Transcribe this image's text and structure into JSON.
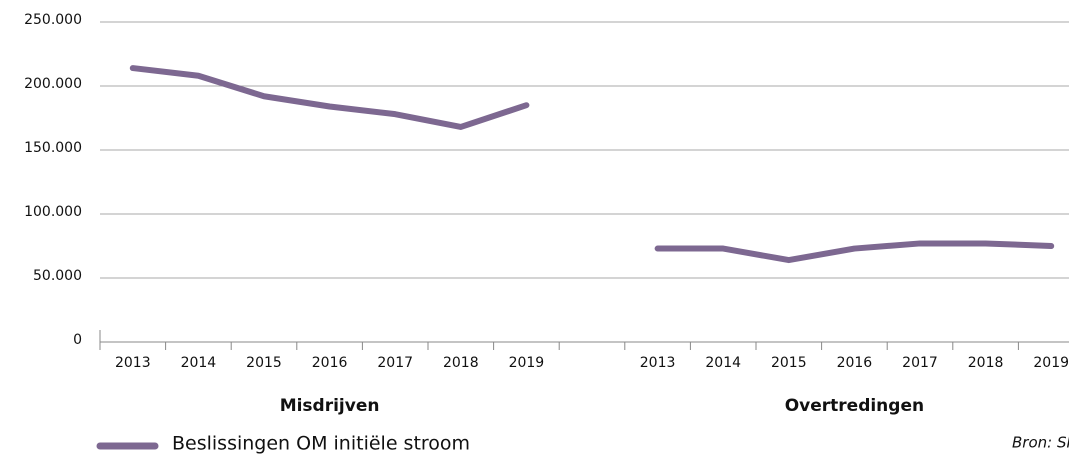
{
  "chart_data": {
    "type": "line",
    "categories": [
      "2013",
      "2014",
      "2015",
      "2016",
      "2017",
      "2018",
      "2019",
      null,
      "2013",
      "2014",
      "2015",
      "2016",
      "2017",
      "2018",
      "2019"
    ],
    "group_labels": [
      "Misdrijven",
      "Overtredingen"
    ],
    "series": [
      {
        "name": "Beslissingen OM initiële stroom",
        "color": "#7d6891",
        "values": [
          214000,
          208000,
          192000,
          184000,
          178000,
          168000,
          185000,
          null,
          73000,
          73000,
          64000,
          73000,
          77000,
          77000,
          75000
        ]
      }
    ],
    "ylim": [
      0,
      250000
    ],
    "yticks": [
      0,
      {
        "value": 50000,
        "label": "50.000"
      },
      {
        "value": 100000,
        "label": "100.000"
      },
      {
        "value": 150000,
        "label": "150.000"
      },
      {
        "value": 200000,
        "label": "200.000"
      },
      {
        "value": 250000,
        "label": "250.000"
      }
    ],
    "grid": true,
    "source": "Bron: SK"
  }
}
